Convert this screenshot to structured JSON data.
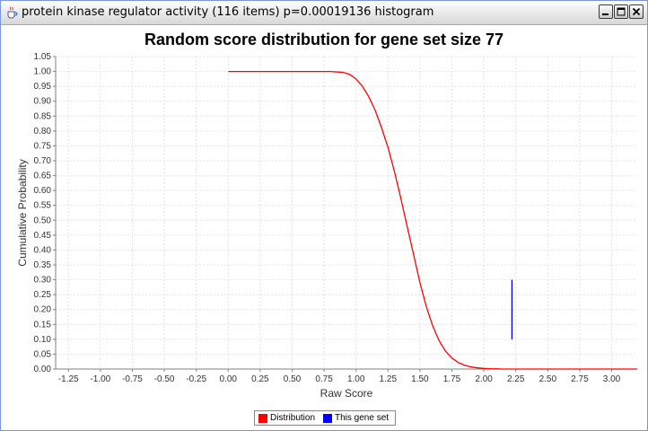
{
  "window": {
    "title": "protein kinase regulator activity (116 items) p=0.00019136 histogram",
    "icon": "java-coffee-cup-icon"
  },
  "chart_data": {
    "type": "line",
    "title": "Random score distribution for gene set size 77",
    "xlabel": "Raw Score",
    "ylabel": "Cumulative Probability",
    "xlim": [
      -1.35,
      3.2
    ],
    "ylim": [
      0.0,
      1.05
    ],
    "grid": true,
    "x_ticks": [
      "-1.25",
      "-1.00",
      "-0.75",
      "-0.50",
      "-0.25",
      "0.00",
      "0.25",
      "0.50",
      "0.75",
      "1.00",
      "1.25",
      "1.50",
      "1.75",
      "2.00",
      "2.25",
      "2.50",
      "2.75",
      "3.00"
    ],
    "y_ticks": [
      "0.00",
      "0.05",
      "0.10",
      "0.15",
      "0.20",
      "0.25",
      "0.30",
      "0.35",
      "0.40",
      "0.45",
      "0.50",
      "0.55",
      "0.60",
      "0.65",
      "0.70",
      "0.75",
      "0.80",
      "0.85",
      "0.90",
      "0.95",
      "1.00",
      "1.05"
    ],
    "series": [
      {
        "name": "Distribution",
        "color": "#ff0000",
        "x": [
          0.0,
          0.5,
          0.8,
          0.9,
          0.95,
          1.0,
          1.05,
          1.1,
          1.15,
          1.2,
          1.25,
          1.3,
          1.35,
          1.4,
          1.45,
          1.5,
          1.55,
          1.6,
          1.65,
          1.7,
          1.75,
          1.8,
          1.85,
          1.9,
          1.95,
          2.0,
          2.05,
          2.1,
          2.15,
          2.2,
          2.5,
          3.2
        ],
        "y": [
          1.0,
          1.0,
          1.0,
          0.997,
          0.99,
          0.975,
          0.95,
          0.915,
          0.87,
          0.81,
          0.745,
          0.665,
          0.575,
          0.48,
          0.385,
          0.29,
          0.21,
          0.145,
          0.095,
          0.06,
          0.037,
          0.022,
          0.013,
          0.007,
          0.004,
          0.002,
          0.001,
          0.0005,
          0.0,
          0.0,
          0.0,
          0.0
        ]
      },
      {
        "name": "This gene set",
        "color": "#0000ff",
        "x": [
          2.22,
          2.22
        ],
        "y": [
          0.1,
          0.3
        ]
      }
    ],
    "legend": [
      "Distribution",
      "This gene set"
    ],
    "legend_position": "bottom-center"
  }
}
